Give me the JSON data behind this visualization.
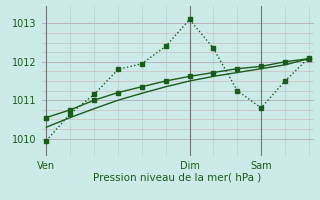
{
  "xlabel": "Pression niveau de la mer( hPa )",
  "bg_color": "#cceae8",
  "line_color": "#1a5c1a",
  "line1_x": [
    0,
    1,
    2,
    3,
    4,
    5,
    6,
    7,
    8,
    9,
    10,
    11
  ],
  "line1_y": [
    1009.95,
    1010.65,
    1011.15,
    1011.8,
    1011.95,
    1012.4,
    1013.1,
    1012.35,
    1011.25,
    1010.8,
    1011.5,
    1012.1
  ],
  "line2_x": [
    0,
    1,
    2,
    3,
    4,
    5,
    6,
    7,
    8,
    9,
    10,
    11
  ],
  "line2_y": [
    1010.55,
    1010.75,
    1011.0,
    1011.2,
    1011.35,
    1011.5,
    1011.62,
    1011.72,
    1011.82,
    1011.88,
    1012.0,
    1012.08
  ],
  "line3_x": [
    0,
    1,
    2,
    3,
    4,
    5,
    6,
    7,
    8,
    9,
    10,
    11
  ],
  "line3_y": [
    1010.3,
    1010.55,
    1010.78,
    1011.0,
    1011.18,
    1011.35,
    1011.5,
    1011.62,
    1011.72,
    1011.82,
    1011.92,
    1012.08
  ],
  "xtick_positions": [
    0,
    6,
    9
  ],
  "xtick_labels": [
    "Ven",
    "Dim",
    "Sam"
  ],
  "ylim": [
    1009.55,
    1013.45
  ],
  "yticks": [
    1010,
    1011,
    1012,
    1013
  ],
  "vline_x": [
    0,
    6,
    9
  ],
  "hgrid_all": [
    1010,
    1010.25,
    1010.5,
    1010.75,
    1011,
    1011.25,
    1011.5,
    1011.75,
    1012,
    1012.25,
    1012.5,
    1012.75,
    1013
  ],
  "vgrid_all": [
    0,
    1,
    2,
    3,
    4,
    5,
    6,
    7,
    8,
    9,
    10,
    11
  ],
  "markersize": 2.5,
  "linewidth": 1.0
}
